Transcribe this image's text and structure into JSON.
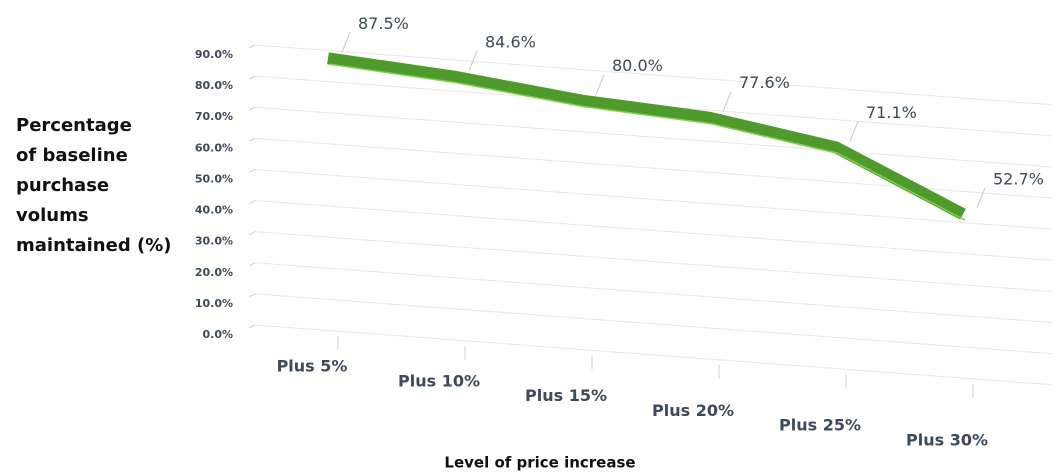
{
  "chart_data": {
    "type": "line3d",
    "xlabel": "Level of price increase",
    "ylabel": [
      "Percentage",
      "of baseline",
      "purchase",
      "volums",
      "maintained (%)"
    ],
    "categories": [
      "Plus 5%",
      "Plus 10%",
      "Plus 15%",
      "Plus 20%",
      "Plus 25%",
      "Plus 30%"
    ],
    "series": [
      {
        "color": "#4e9a2c",
        "values": [
          87.5,
          84.6,
          80.0,
          77.6,
          71.1,
          52.7
        ],
        "value_labels": [
          "87.5%",
          "84.6%",
          "80.0%",
          "77.6%",
          "71.1%",
          "52.7%"
        ]
      }
    ],
    "ylim": [
      0,
      90
    ],
    "yticks": [
      {
        "value": 0,
        "label": "0.0%"
      },
      {
        "value": 10,
        "label": "10.0%"
      },
      {
        "value": 20,
        "label": "20.0%"
      },
      {
        "value": 30,
        "label": "30.0%"
      },
      {
        "value": 40,
        "label": "40.0%"
      },
      {
        "value": 50,
        "label": "50.0%"
      },
      {
        "value": 60,
        "label": "60.0%"
      },
      {
        "value": 70,
        "label": "70.0%"
      },
      {
        "value": 80,
        "label": "80.0%"
      },
      {
        "value": 90,
        "label": "90.0%"
      }
    ],
    "grid": true
  }
}
